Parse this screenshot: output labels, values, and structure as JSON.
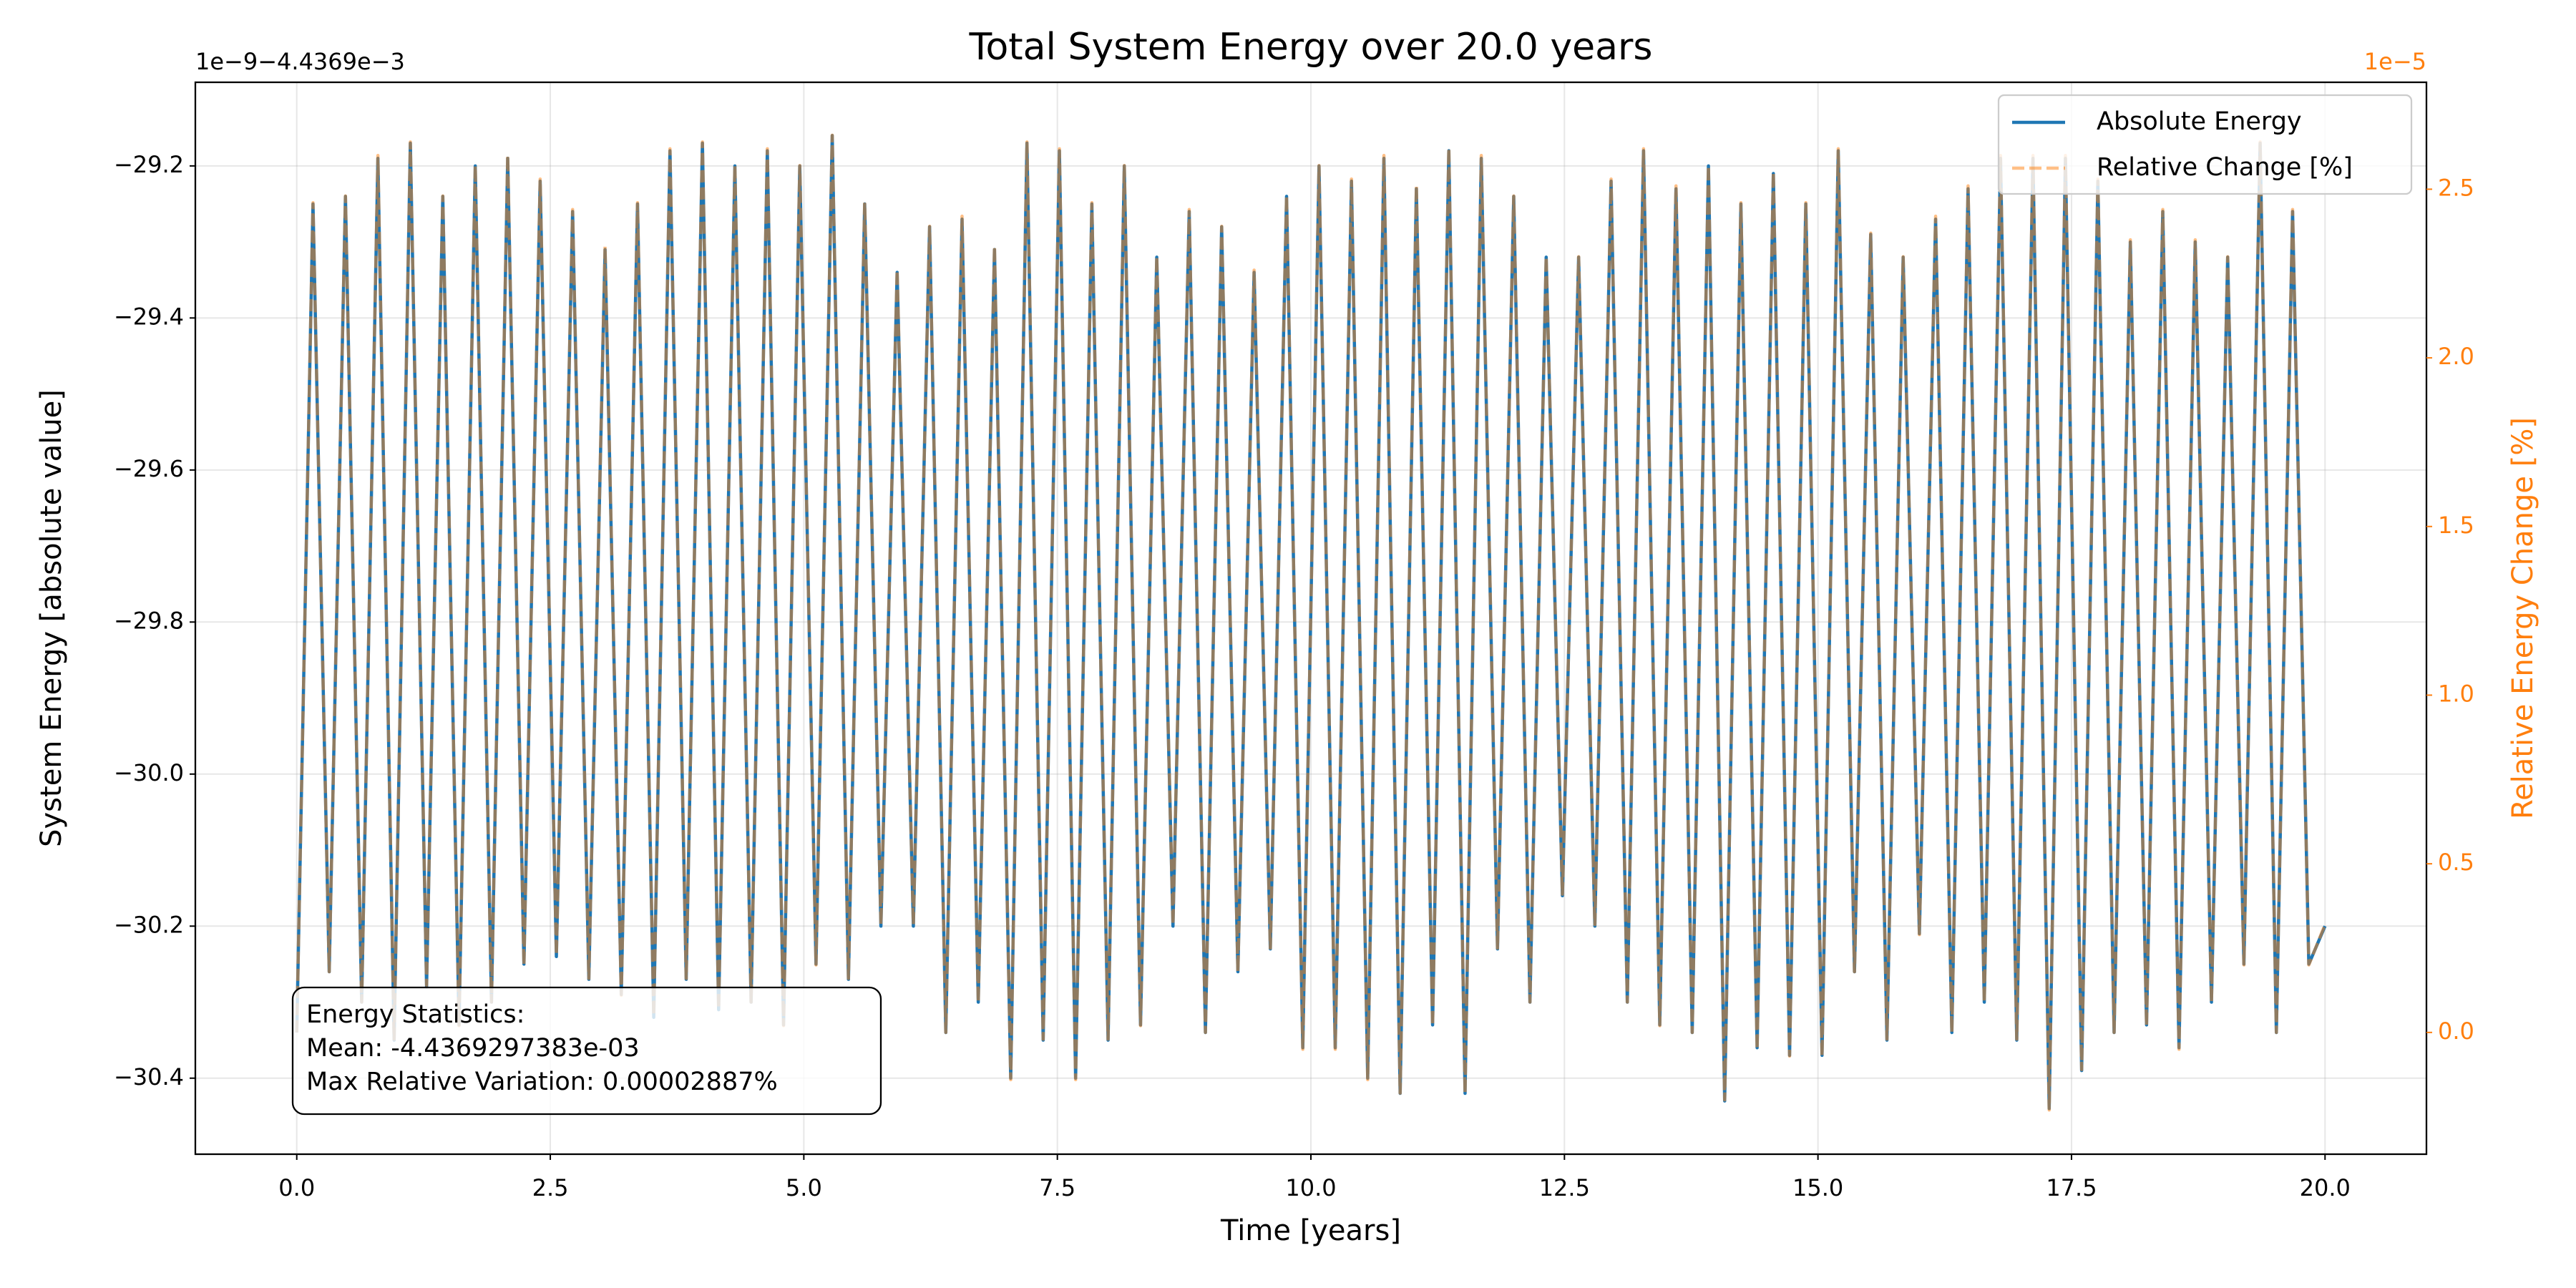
{
  "chart_data": {
    "type": "line",
    "title": "Total System Energy over 20.0 years",
    "x_label": "Time [years]",
    "y_label": "System Energy [absolute value]",
    "y2_label": "Relative Energy Change [%]",
    "y_offset_label": "1e−9−4.4369e−3",
    "y2_offset_label": "1e−5",
    "annotation": [
      "Energy Statistics:",
      "Mean: -4.4369297383e-03",
      "Max Relative Variation: 0.00002887%"
    ],
    "grid": true,
    "legend": "upper right",
    "xlim": [
      -1,
      21
    ],
    "ylim": [
      -30.5,
      -29.09
    ],
    "y2lim": [
      -0.361,
      2.817
    ],
    "xticks": [
      {
        "value": 0,
        "label": "0.0"
      },
      {
        "value": 2.5,
        "label": "2.5"
      },
      {
        "value": 5,
        "label": "5.0"
      },
      {
        "value": 7.5,
        "label": "7.5"
      },
      {
        "value": 10,
        "label": "10.0"
      },
      {
        "value": 12.5,
        "label": "12.5"
      },
      {
        "value": 15,
        "label": "15.0"
      },
      {
        "value": 17.5,
        "label": "17.5"
      },
      {
        "value": 20,
        "label": "20.0"
      }
    ],
    "yticks": [
      {
        "value": -30.4,
        "label": "−30.4"
      },
      {
        "value": -30.2,
        "label": "−30.2"
      },
      {
        "value": -30,
        "label": "−30.0"
      },
      {
        "value": -29.8,
        "label": "−29.8"
      },
      {
        "value": -29.6,
        "label": "−29.6"
      },
      {
        "value": -29.4,
        "label": "−29.4"
      },
      {
        "value": -29.2,
        "label": "−29.2"
      }
    ],
    "y2ticks": [
      {
        "value": 0,
        "label": "0.0"
      },
      {
        "value": 0.5,
        "label": "0.5"
      },
      {
        "value": 1,
        "label": "1.0"
      },
      {
        "value": 1.5,
        "label": "1.5"
      },
      {
        "value": 2,
        "label": "2.0"
      },
      {
        "value": 2.5,
        "label": "2.5"
      }
    ],
    "x": [
      0,
      0.16,
      0.32,
      0.48,
      0.64,
      0.8,
      0.96,
      1.12,
      1.28,
      1.44,
      1.6,
      1.76,
      1.92,
      2.08,
      2.24,
      2.4,
      2.56,
      2.72,
      2.88,
      3.04,
      3.2,
      3.36,
      3.52,
      3.68,
      3.84,
      4,
      4.16,
      4.32,
      4.48,
      4.64,
      4.8,
      4.96,
      5.12,
      5.28,
      5.44,
      5.6,
      5.76,
      5.92,
      6.08,
      6.24,
      6.4,
      6.56,
      6.72,
      6.88,
      7.04,
      7.2,
      7.36,
      7.52,
      7.68,
      7.84,
      8,
      8.16,
      8.32,
      8.48,
      8.64,
      8.8,
      8.96,
      9.12,
      9.28,
      9.44,
      9.6,
      9.76,
      9.92,
      10.08,
      10.24,
      10.4,
      10.56,
      10.72,
      10.88,
      11.04,
      11.2,
      11.36,
      11.52,
      11.68,
      11.84,
      12,
      12.16,
      12.32,
      12.48,
      12.64,
      12.8,
      12.96,
      13.12,
      13.28,
      13.44,
      13.6,
      13.76,
      13.92,
      14.08,
      14.24,
      14.4,
      14.56,
      14.72,
      14.88,
      15.04,
      15.2,
      15.36,
      15.52,
      15.68,
      15.84,
      16,
      16.16,
      16.32,
      16.48,
      16.64,
      16.8,
      16.96,
      17.12,
      17.28,
      17.44,
      17.6,
      17.76,
      17.92,
      18.08,
      18.24,
      18.4,
      18.56,
      18.72,
      18.88,
      19.04,
      19.2,
      19.36,
      19.52,
      19.68,
      19.84,
      20
    ],
    "series": [
      {
        "name": "Absolute Energy",
        "color": "#1f77b4",
        "linestyle": "solid",
        "opacity": 1,
        "axis": "y",
        "values": [
          -30.34,
          -29.25,
          -30.26,
          -29.24,
          -30.3,
          -29.19,
          -30.35,
          -29.17,
          -30.28,
          -29.24,
          -30.33,
          -29.2,
          -30.3,
          -29.19,
          -30.25,
          -29.22,
          -30.24,
          -29.26,
          -30.27,
          -29.31,
          -30.29,
          -29.25,
          -30.32,
          -29.18,
          -30.27,
          -29.17,
          -30.31,
          -29.2,
          -30.3,
          -29.18,
          -30.33,
          -29.2,
          -30.25,
          -29.16,
          -30.27,
          -29.25,
          -30.2,
          -29.34,
          -30.2,
          -29.28,
          -30.34,
          -29.27,
          -30.3,
          -29.31,
          -30.4,
          -29.17,
          -30.35,
          -29.18,
          -30.4,
          -29.25,
          -30.35,
          -29.2,
          -30.33,
          -29.32,
          -30.2,
          -29.26,
          -30.34,
          -29.28,
          -30.26,
          -29.34,
          -30.23,
          -29.24,
          -30.36,
          -29.2,
          -30.36,
          -29.22,
          -30.4,
          -29.19,
          -30.42,
          -29.23,
          -30.33,
          -29.18,
          -30.42,
          -29.19,
          -30.23,
          -29.24,
          -30.3,
          -29.32,
          -30.16,
          -29.32,
          -30.2,
          -29.22,
          -30.3,
          -29.18,
          -30.33,
          -29.23,
          -30.34,
          -29.2,
          -30.43,
          -29.25,
          -30.36,
          -29.21,
          -30.37,
          -29.25,
          -30.37,
          -29.18,
          -30.26,
          -29.29,
          -30.35,
          -29.32,
          -30.21,
          -29.27,
          -30.34,
          -29.23,
          -30.3,
          -29.19,
          -30.35,
          -29.19,
          -30.44,
          -29.19,
          -30.39,
          -29.22,
          -30.34,
          -29.3,
          -30.33,
          -29.26,
          -30.36,
          -29.3,
          -30.3,
          -29.32,
          -30.25,
          -29.17,
          -30.34,
          -29.26,
          -30.25,
          -30.2
        ]
      },
      {
        "name": "Relative Change [%]",
        "color": "#ff7f0e",
        "linestyle": "dashed",
        "opacity": 0.5,
        "axis": "y2",
        "values": [
          0,
          2.46,
          0.18,
          2.48,
          0.09,
          2.6,
          -0.02,
          2.64,
          0.14,
          2.48,
          0.02,
          2.57,
          0.09,
          2.6,
          0.2,
          2.53,
          0.23,
          2.44,
          0.16,
          2.33,
          0.11,
          2.46,
          0.05,
          2.62,
          0.16,
          2.64,
          0.07,
          2.57,
          0.09,
          2.62,
          0.02,
          2.57,
          0.2,
          2.66,
          0.16,
          2.46,
          0.32,
          2.26,
          0.32,
          2.39,
          0,
          2.42,
          0.09,
          2.33,
          -0.14,
          2.64,
          -0.02,
          2.62,
          -0.14,
          2.46,
          -0.02,
          2.57,
          0.02,
          2.3,
          0.32,
          2.44,
          0,
          2.39,
          0.18,
          2.26,
          0.25,
          2.48,
          -0.05,
          2.57,
          -0.05,
          2.53,
          -0.14,
          2.6,
          -0.18,
          2.51,
          0.02,
          2.62,
          -0.18,
          2.6,
          0.25,
          2.48,
          0.09,
          2.3,
          0.41,
          2.3,
          0.32,
          2.53,
          0.09,
          2.62,
          0.02,
          2.51,
          0,
          2.57,
          -0.2,
          2.46,
          -0.05,
          2.55,
          -0.07,
          2.46,
          -0.07,
          2.62,
          0.18,
          2.37,
          -0.02,
          2.3,
          0.29,
          2.42,
          0,
          2.51,
          0.09,
          2.6,
          -0.02,
          2.6,
          -0.23,
          2.6,
          -0.11,
          2.53,
          0,
          2.35,
          0.02,
          2.44,
          -0.05,
          2.35,
          0.09,
          2.3,
          0.2,
          2.64,
          0,
          2.44,
          0.2,
          0.32
        ]
      }
    ]
  }
}
